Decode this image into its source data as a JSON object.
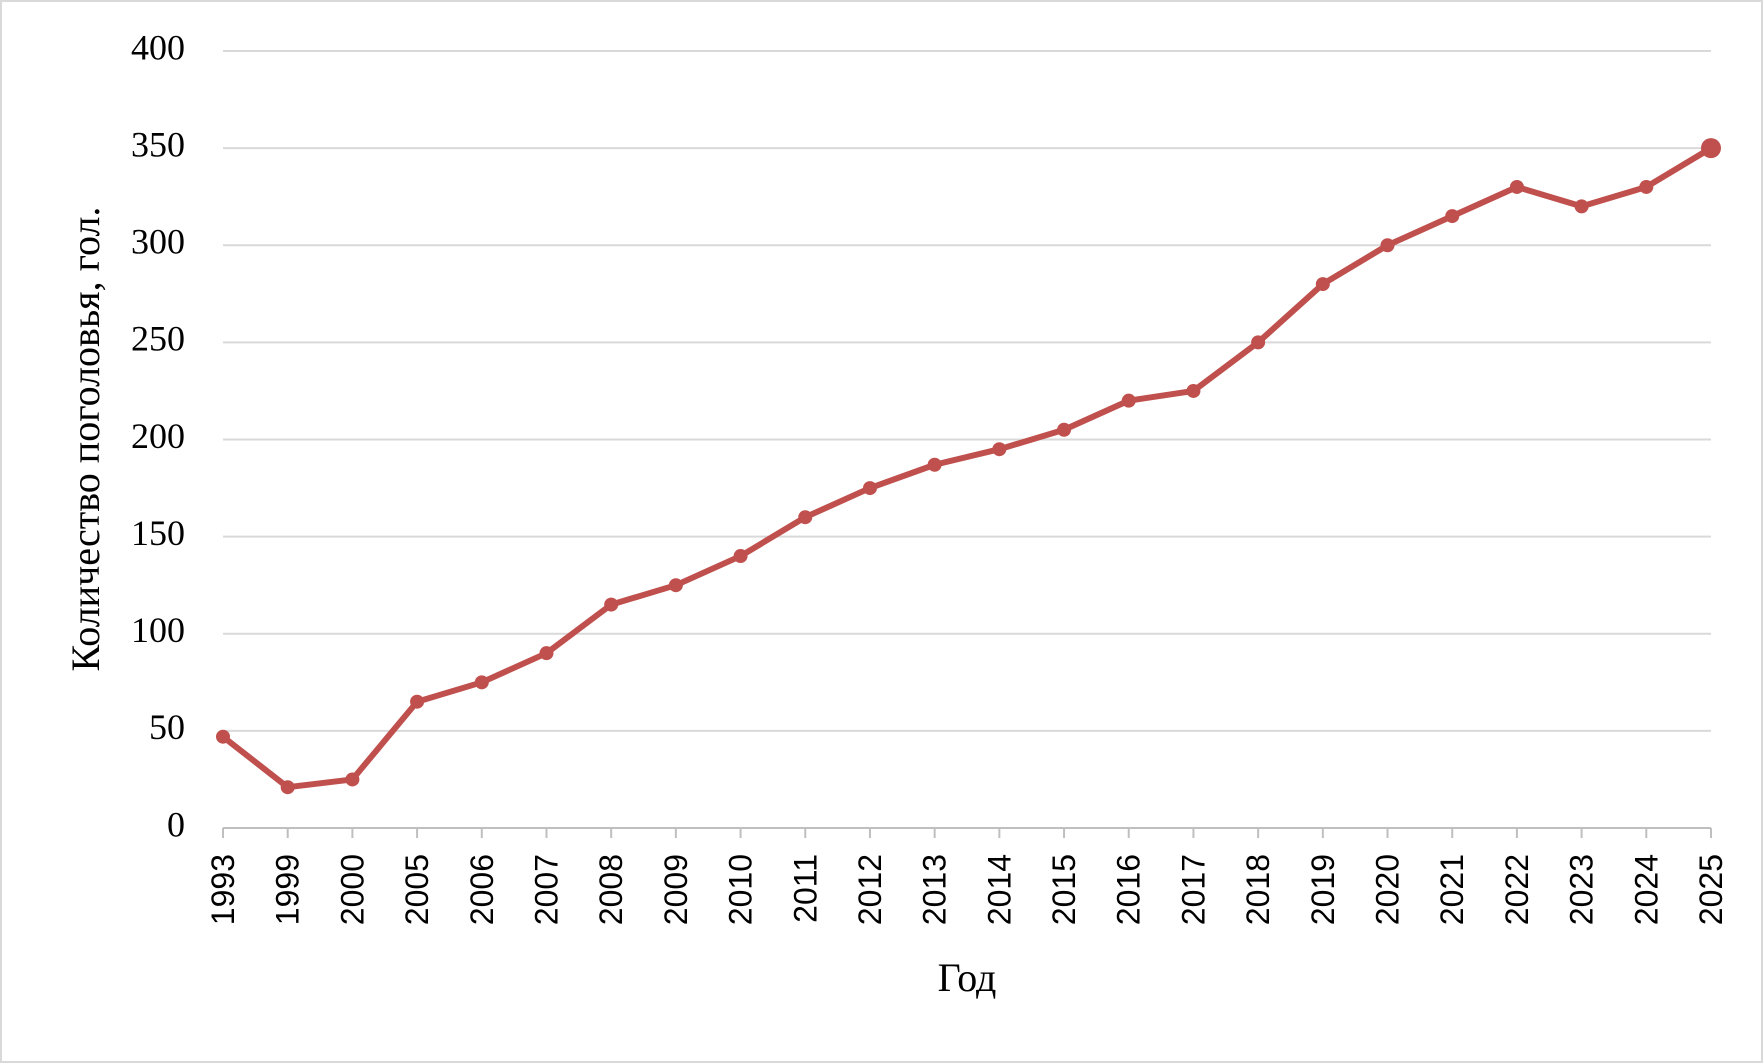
{
  "chart_data": {
    "type": "line",
    "x_label": "Год",
    "y_label": "Количество поголовья, гол.",
    "categories": [
      "1993",
      "1999",
      "2000",
      "2005",
      "2006",
      "2007",
      "2008",
      "2009",
      "2010",
      "2011",
      "2012",
      "2013",
      "2014",
      "2015",
      "2016",
      "2017",
      "2018",
      "2019",
      "2020",
      "2021",
      "2022",
      "2023",
      "2024",
      "2025"
    ],
    "series": [
      {
        "name": "Количество поголовья",
        "color": "#c0504d",
        "values": [
          47,
          21,
          25,
          65,
          75,
          90,
          115,
          125,
          140,
          160,
          175,
          187,
          195,
          205,
          220,
          225,
          250,
          280,
          300,
          315,
          330,
          320,
          330,
          350
        ]
      }
    ],
    "ylim": [
      0,
      400
    ],
    "yticks": [
      0,
      50,
      100,
      150,
      200,
      250,
      300,
      350,
      400
    ],
    "grid": true
  }
}
